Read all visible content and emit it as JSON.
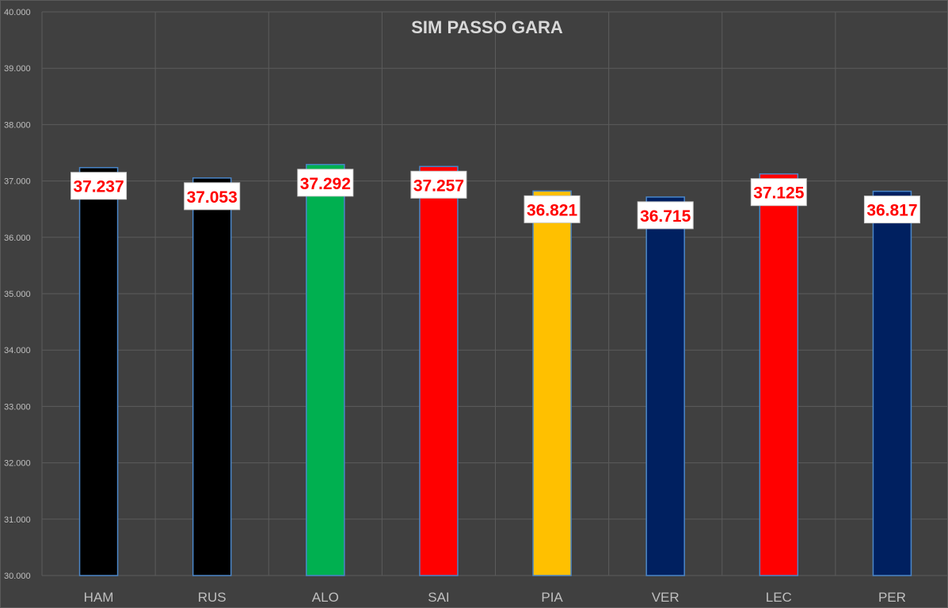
{
  "chart_data": {
    "type": "bar",
    "title": "SIM PASSO GARA",
    "xlabel": "",
    "ylabel": "",
    "ylim": [
      30,
      40
    ],
    "yticks": [
      30,
      31,
      32,
      33,
      34,
      35,
      36,
      37,
      38,
      39,
      40
    ],
    "ytick_labels": [
      "30.000",
      "31.000",
      "32.000",
      "33.000",
      "34.000",
      "35.000",
      "36.000",
      "37.000",
      "38.000",
      "39.000",
      "40.000"
    ],
    "grid": true,
    "legend": "none",
    "categories": [
      "HAM",
      "RUS",
      "ALO",
      "SAI",
      "PIA",
      "VER",
      "LEC",
      "PER"
    ],
    "values": [
      37.237,
      37.053,
      37.292,
      37.257,
      36.821,
      36.715,
      37.125,
      36.817
    ],
    "value_labels": [
      "37.237",
      "37.053",
      "37.292",
      "37.257",
      "36.821",
      "36.715",
      "37.125",
      "36.817"
    ],
    "bar_colors": [
      "#000000",
      "#000000",
      "#00b050",
      "#ff0000",
      "#ffc000",
      "#002060",
      "#ff0000",
      "#002060"
    ],
    "label_color": "#ff0000",
    "background_color": "#404040"
  }
}
